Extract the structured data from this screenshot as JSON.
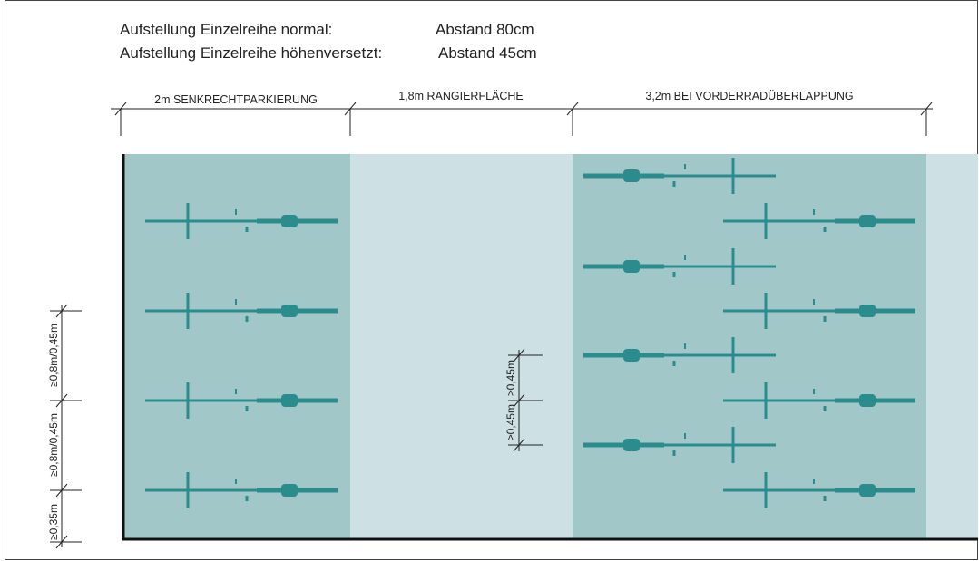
{
  "header": {
    "lines": [
      {
        "label": "Aufstellung Einzelreihe normal:",
        "value": "Abstand 80cm"
      },
      {
        "label": "Aufstellung Einzelreihe höhenversetzt:",
        "value": "Abstand 45cm"
      }
    ]
  },
  "zones": [
    {
      "label": "2m SENKRECHTPARKIERUNG"
    },
    {
      "label": "1,8m RANGIERFLÄCHE"
    },
    {
      "label": "3,2m BEI VORDERRADÜBERLAPPUNG"
    }
  ],
  "left_dimensions": [
    "≥0,8m/0,45m",
    "≥0,8m/0,45m",
    "≥0,35m"
  ],
  "middle_dimensions": [
    "≥0,45m",
    "≥0,45m"
  ]
}
